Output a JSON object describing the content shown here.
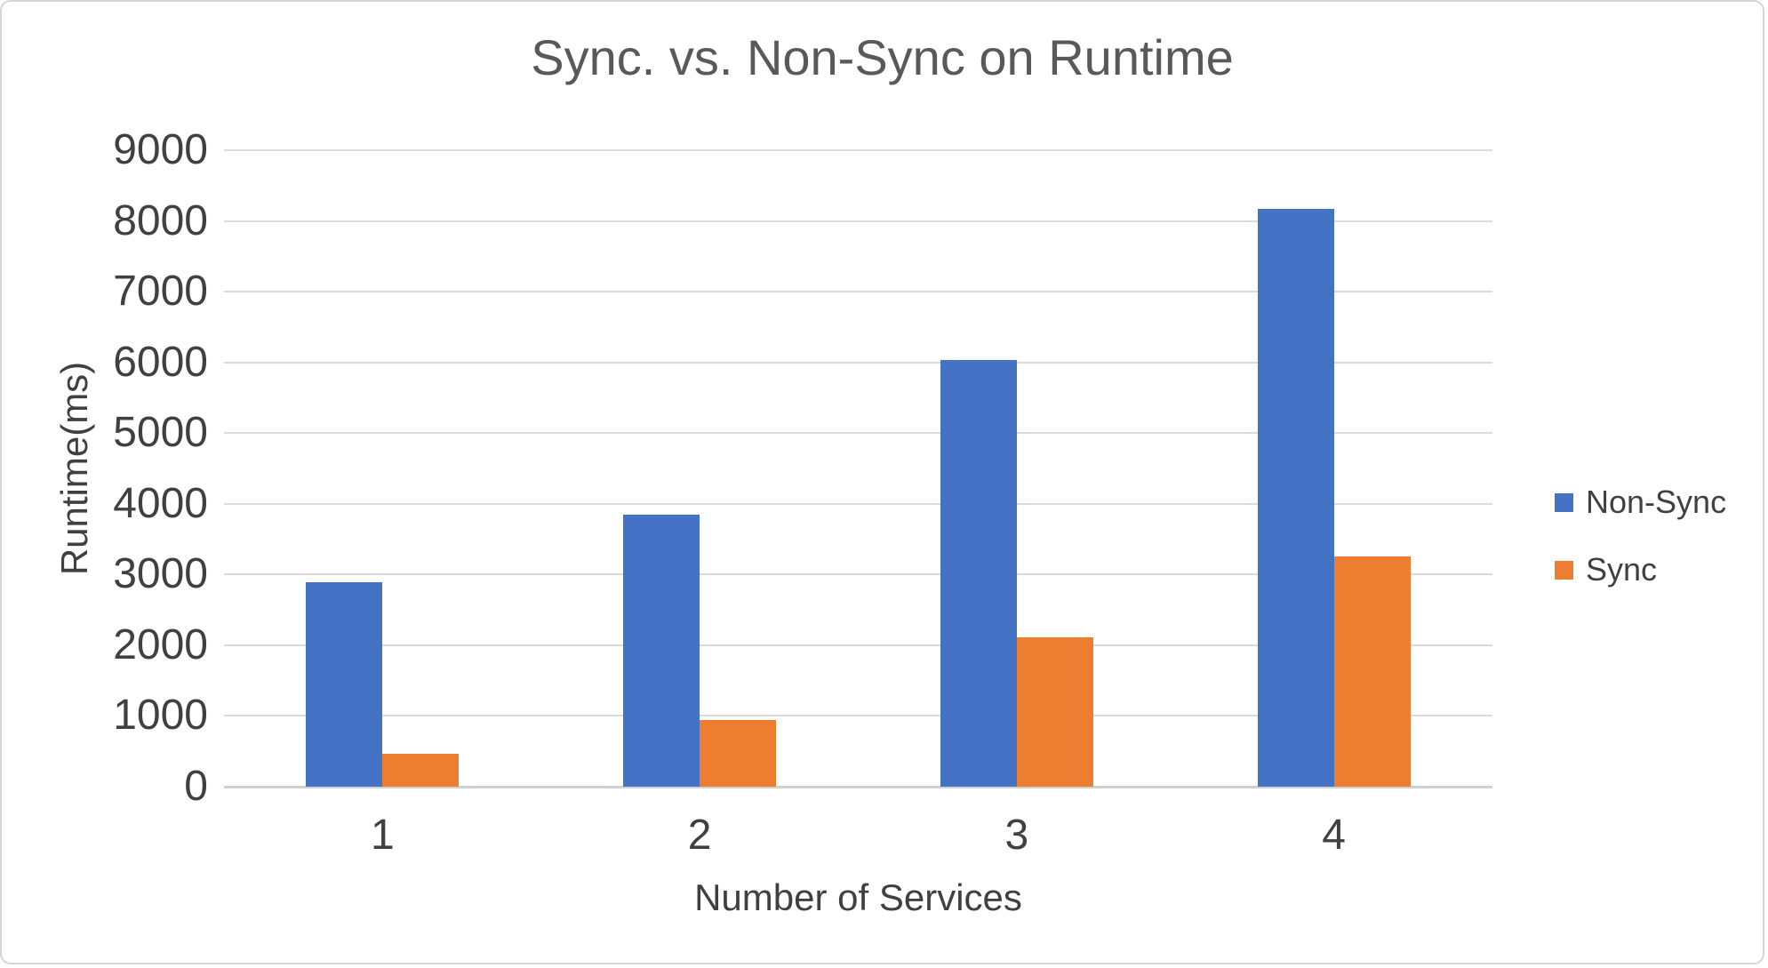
{
  "chart_data": {
    "type": "bar",
    "title": "Sync. vs. Non-Sync on Runtime",
    "xlabel": "Number of Services",
    "ylabel": "Runtime(ms)",
    "categories": [
      "1",
      "2",
      "3",
      "4"
    ],
    "series": [
      {
        "name": "Non-Sync",
        "color": "#4472C4",
        "values": [
          2890,
          3850,
          6030,
          8170
        ]
      },
      {
        "name": "Sync",
        "color": "#ED7D31",
        "values": [
          460,
          940,
          2110,
          3260
        ]
      }
    ],
    "ylim": [
      0,
      9000
    ],
    "ytick_step": 1000,
    "yticks": [
      0,
      1000,
      2000,
      3000,
      4000,
      5000,
      6000,
      7000,
      8000,
      9000
    ],
    "grid": true,
    "legend_position": "right",
    "gridline_color": "#DADADA",
    "text_color": "#404040",
    "title_color": "#595959"
  }
}
